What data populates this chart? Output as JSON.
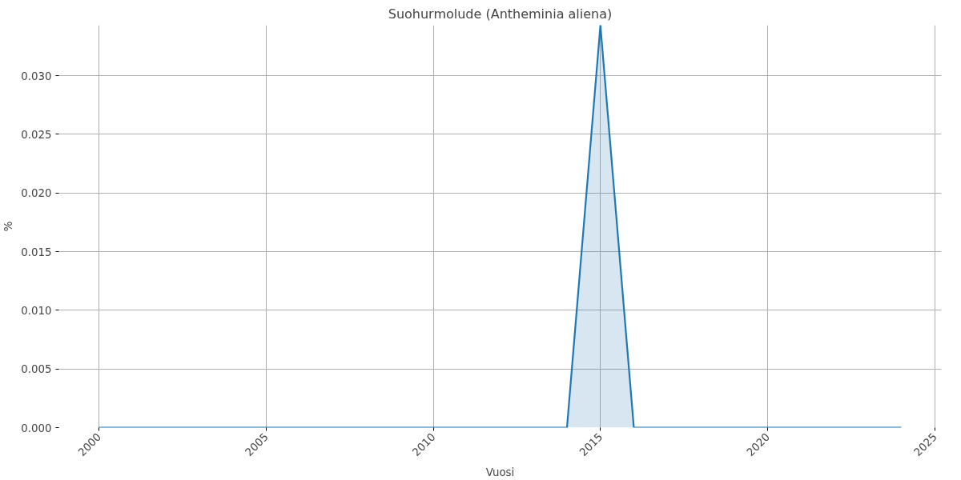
{
  "chart_data": {
    "type": "area",
    "title": "Suohurmolude (Antheminia aliena)",
    "xlabel": "Vuosi",
    "ylabel": "%",
    "x": [
      2000,
      2001,
      2002,
      2003,
      2004,
      2005,
      2006,
      2007,
      2008,
      2009,
      2010,
      2011,
      2012,
      2013,
      2014,
      2015,
      2016,
      2017,
      2018,
      2019,
      2020,
      2021,
      2022,
      2023,
      2024
    ],
    "series": [
      {
        "color": "#1f77b4",
        "values": [
          0,
          0,
          0,
          0,
          0,
          0,
          0,
          0,
          0,
          0,
          0,
          0,
          0,
          0,
          0,
          0.0343,
          0,
          0,
          0,
          0,
          0,
          0,
          0,
          0,
          0
        ]
      }
    ],
    "xlim": [
      1998.8,
      2025.2
    ],
    "ylim": [
      0,
      0.0343
    ],
    "xticks": [
      2000,
      2005,
      2010,
      2015,
      2020,
      2025
    ],
    "yticks": [
      {
        "value": 0,
        "label": "0.000"
      },
      0.005,
      {
        "value": 0.01,
        "label": "0.010"
      },
      0.015,
      {
        "value": 0.02,
        "label": "0.020"
      },
      0.025,
      {
        "value": 0.03,
        "label": "0.030"
      }
    ],
    "grid": true
  }
}
